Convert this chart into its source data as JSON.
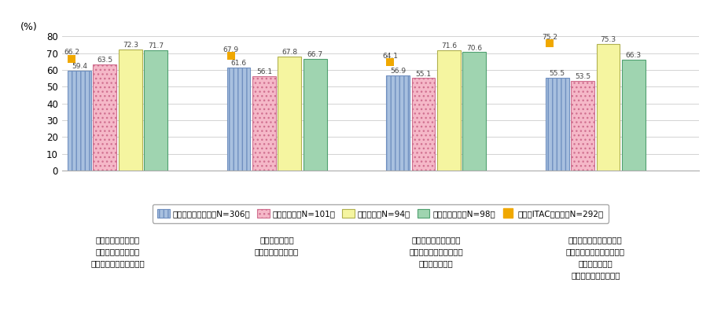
{
  "categories": [
    "あらゆるシステムや\nノウハウ等の蓄積の\nデジタル化やデータ共有",
    "効率向上による\n生産等のコスト低減",
    "新たなニーズの充足や\n個々のニーズに合わせた\nカスタマイズ化",
    "「モノ」から「サービス\n（ソリューション）」への\n付加価値シフト\n（モノのサービス化）"
  ],
  "bar_series": {
    "japan_general": [
      59.4,
      61.6,
      56.9,
      55.5
    ],
    "germany": [
      63.5,
      56.1,
      55.1,
      53.5
    ],
    "usa": [
      72.3,
      67.8,
      71.6,
      75.3
    ],
    "uk": [
      71.7,
      66.7,
      70.6,
      66.3
    ]
  },
  "itac_values": [
    66.2,
    67.9,
    64.1,
    75.2
  ],
  "bar_colors": [
    "#a8c0df",
    "#f5b8c8",
    "#f5f5a0",
    "#9fd4b0"
  ],
  "bar_edge_colors": [
    "#7090c0",
    "#d07090",
    "#b0b050",
    "#50a070"
  ],
  "hatch_patterns": [
    "|||",
    "...",
    "",
    "==="
  ],
  "itac_color": "#f0a800",
  "ylim": [
    0,
    80
  ],
  "yticks": [
    0,
    10,
    20,
    30,
    40,
    50,
    60,
    70,
    80
  ],
  "ylabel": "(%)",
  "bar_width": 0.16,
  "group_positions": [
    0.3,
    1.3,
    2.3,
    3.3
  ],
  "legend_labels": [
    "日本（一般）企業（N=306）",
    "ドイツ企業（N=101）",
    "米国企業（N=94）",
    "イギリス企業（N=98）",
    "日本（ITAC）企業（N=292）"
  ],
  "background_color": "#ffffff",
  "grid_color": "#cccccc"
}
